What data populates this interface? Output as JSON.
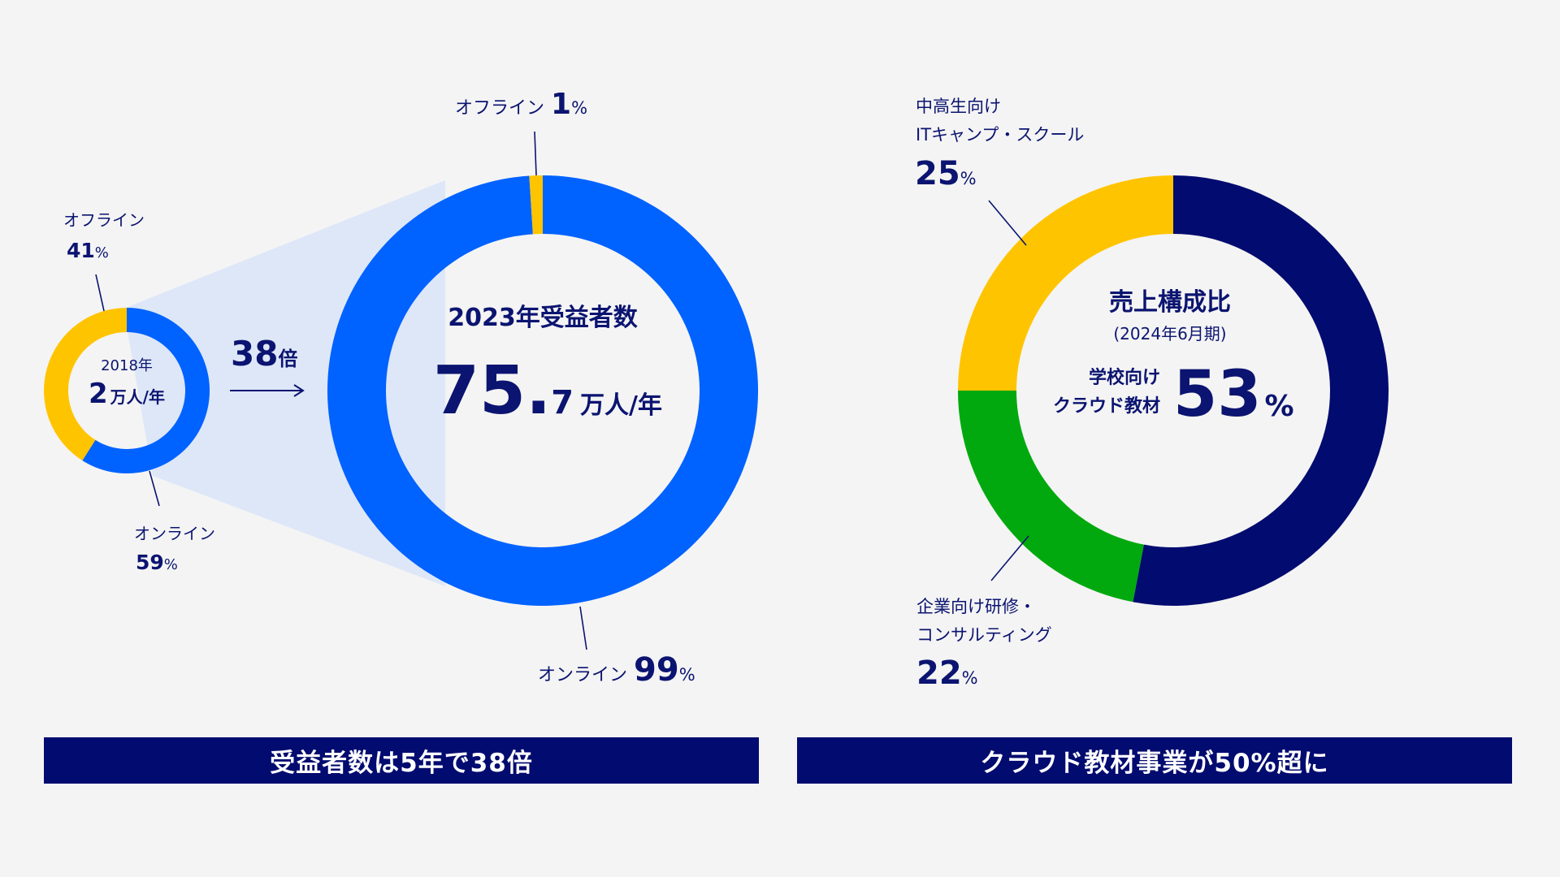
{
  "colors": {
    "navy": "#020b6f",
    "blue": "#0062ff",
    "yellow": "#ffc400",
    "green": "#01a90e",
    "fan": "#dde7f8",
    "background": "#f4f4f4",
    "text": "#0b1470"
  },
  "chart_data": [
    {
      "type": "pie",
      "variant": "donut",
      "center_lines": [
        "2018年",
        "2",
        "万人/年"
      ],
      "slices": [
        {
          "name": "オンライン",
          "value": 59,
          "label": "オンライン",
          "value_text": "59",
          "unit": "%",
          "color": "#0062ff"
        },
        {
          "name": "オフライン",
          "value": 41,
          "label": "オフライン",
          "value_text": "41",
          "unit": "%",
          "color": "#ffc400"
        }
      ]
    },
    {
      "type": "pie",
      "variant": "donut",
      "center_title": "2023年受益者数",
      "center_value": "75.",
      "center_value_small": "7",
      "center_unit": "万人/年",
      "slices": [
        {
          "name": "オンライン",
          "value": 99,
          "label": "オンライン",
          "value_text": "99",
          "unit": "%",
          "color": "#0062ff"
        },
        {
          "name": "オフライン",
          "value": 1,
          "label": "オフライン",
          "value_text": "1",
          "unit": "%",
          "color": "#ffc400"
        }
      ]
    },
    {
      "type": "pie",
      "variant": "donut",
      "center_title": "売上構成比",
      "center_subtitle": "(2024年6月期)",
      "center_label_lines": [
        "学校向け",
        "クラウド教材"
      ],
      "center_value": "53",
      "center_unit": "%",
      "slices": [
        {
          "name": "学校向けクラウド教材",
          "value": 53,
          "color": "#020b6f"
        },
        {
          "name": "企業向け研修・コンサルティング",
          "value": 22,
          "label_lines": [
            "企業向け研修・",
            "コンサルティング"
          ],
          "value_text": "22",
          "unit": "%",
          "color": "#01a90e"
        },
        {
          "name": "中高生向けITキャンプ・スクール",
          "value": 25,
          "label_lines": [
            "中高生向け",
            "ITキャンプ・スクール"
          ],
          "value_text": "25",
          "unit": "%",
          "color": "#ffc400"
        }
      ]
    }
  ],
  "growth": {
    "value": "38",
    "unit": "倍"
  },
  "banners": {
    "left": "受益者数は5年で38倍",
    "right": "クラウド教材事業が50%超に"
  }
}
